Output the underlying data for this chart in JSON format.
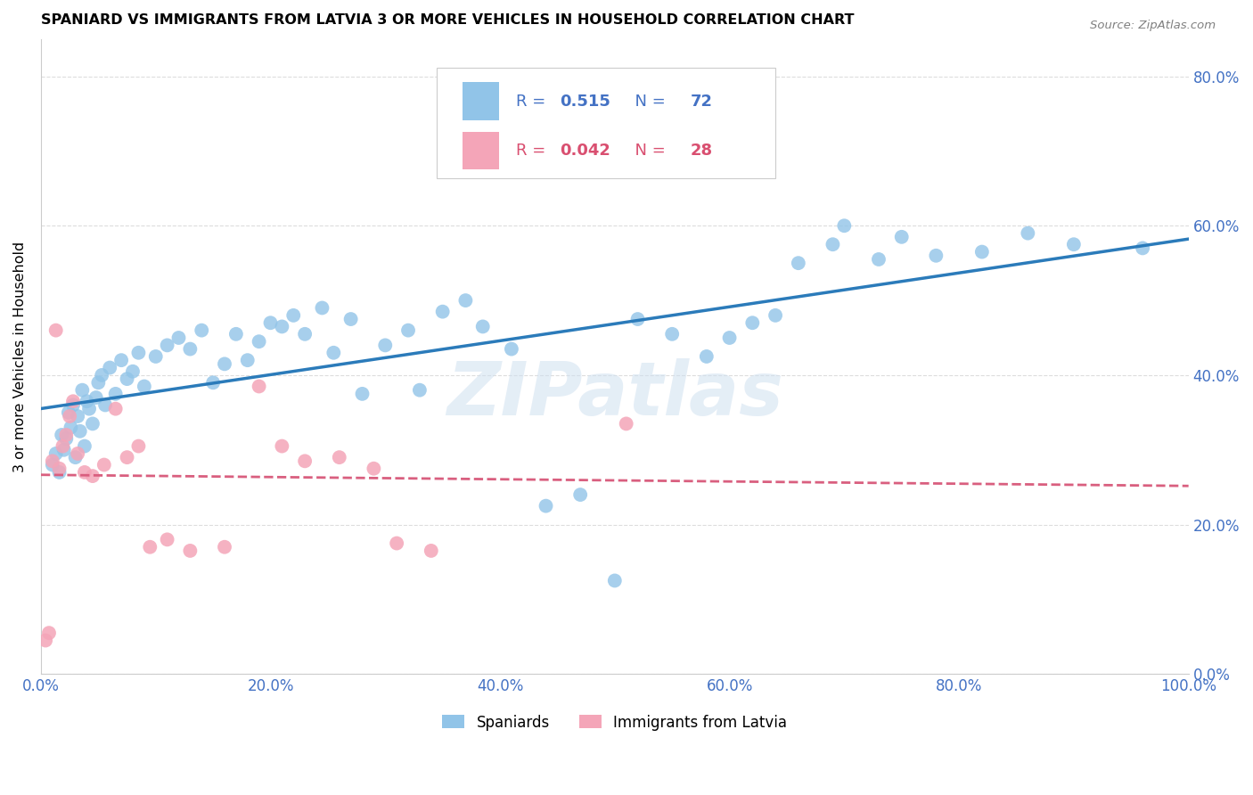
{
  "title": "SPANIARD VS IMMIGRANTS FROM LATVIA 3 OR MORE VEHICLES IN HOUSEHOLD CORRELATION CHART",
  "source": "Source: ZipAtlas.com",
  "ylabel": "3 or more Vehicles in Household",
  "x_ticks": [
    0.0,
    20.0,
    40.0,
    60.0,
    80.0,
    100.0
  ],
  "y_ticks": [
    0.0,
    20.0,
    40.0,
    60.0,
    80.0
  ],
  "spaniard_color": "#91c4e8",
  "latvia_color": "#f4a5b8",
  "spaniard_line_color": "#2b7bba",
  "latvia_line_color": "#d95f7f",
  "R_spaniard": 0.515,
  "N_spaniard": 72,
  "R_latvia": 0.042,
  "N_latvia": 28,
  "watermark": "ZIPatlas",
  "spaniard_x": [
    1.0,
    1.3,
    1.6,
    1.8,
    2.0,
    2.2,
    2.4,
    2.6,
    2.8,
    3.0,
    3.2,
    3.4,
    3.6,
    3.8,
    4.0,
    4.2,
    4.5,
    4.8,
    5.0,
    5.3,
    5.6,
    6.0,
    6.5,
    7.0,
    7.5,
    8.0,
    8.5,
    9.0,
    10.0,
    11.0,
    12.0,
    13.0,
    14.0,
    15.0,
    16.0,
    17.0,
    18.0,
    19.0,
    20.0,
    21.0,
    22.0,
    23.0,
    24.5,
    25.5,
    27.0,
    28.0,
    30.0,
    32.0,
    33.0,
    35.0,
    37.0,
    38.5,
    41.0,
    44.0,
    47.0,
    50.0,
    52.0,
    55.0,
    58.0,
    60.0,
    62.0,
    64.0,
    66.0,
    69.0,
    70.0,
    73.0,
    75.0,
    78.0,
    82.0,
    86.0,
    90.0,
    96.0
  ],
  "spaniard_y": [
    28.0,
    29.5,
    27.0,
    32.0,
    30.0,
    31.5,
    35.0,
    33.0,
    36.0,
    29.0,
    34.5,
    32.5,
    38.0,
    30.5,
    36.5,
    35.5,
    33.5,
    37.0,
    39.0,
    40.0,
    36.0,
    41.0,
    37.5,
    42.0,
    39.5,
    40.5,
    43.0,
    38.5,
    42.5,
    44.0,
    45.0,
    43.5,
    46.0,
    39.0,
    41.5,
    45.5,
    42.0,
    44.5,
    47.0,
    46.5,
    48.0,
    45.5,
    49.0,
    43.0,
    47.5,
    37.5,
    44.0,
    46.0,
    38.0,
    48.5,
    50.0,
    46.5,
    43.5,
    22.5,
    24.0,
    12.5,
    47.5,
    45.5,
    42.5,
    45.0,
    47.0,
    48.0,
    55.0,
    57.5,
    60.0,
    55.5,
    58.5,
    56.0,
    56.5,
    59.0,
    57.5,
    57.0
  ],
  "latvia_x": [
    0.4,
    0.7,
    1.0,
    1.3,
    1.6,
    1.9,
    2.2,
    2.5,
    2.8,
    3.2,
    3.8,
    4.5,
    5.5,
    6.5,
    7.5,
    8.5,
    9.5,
    11.0,
    13.0,
    16.0,
    19.0,
    21.0,
    23.0,
    26.0,
    29.0,
    31.0,
    34.0,
    51.0
  ],
  "latvia_y": [
    4.5,
    5.5,
    28.5,
    46.0,
    27.5,
    30.5,
    32.0,
    34.5,
    36.5,
    29.5,
    27.0,
    26.5,
    28.0,
    35.5,
    29.0,
    30.5,
    17.0,
    18.0,
    16.5,
    17.0,
    38.5,
    30.5,
    28.5,
    29.0,
    27.5,
    17.5,
    16.5,
    33.5
  ]
}
